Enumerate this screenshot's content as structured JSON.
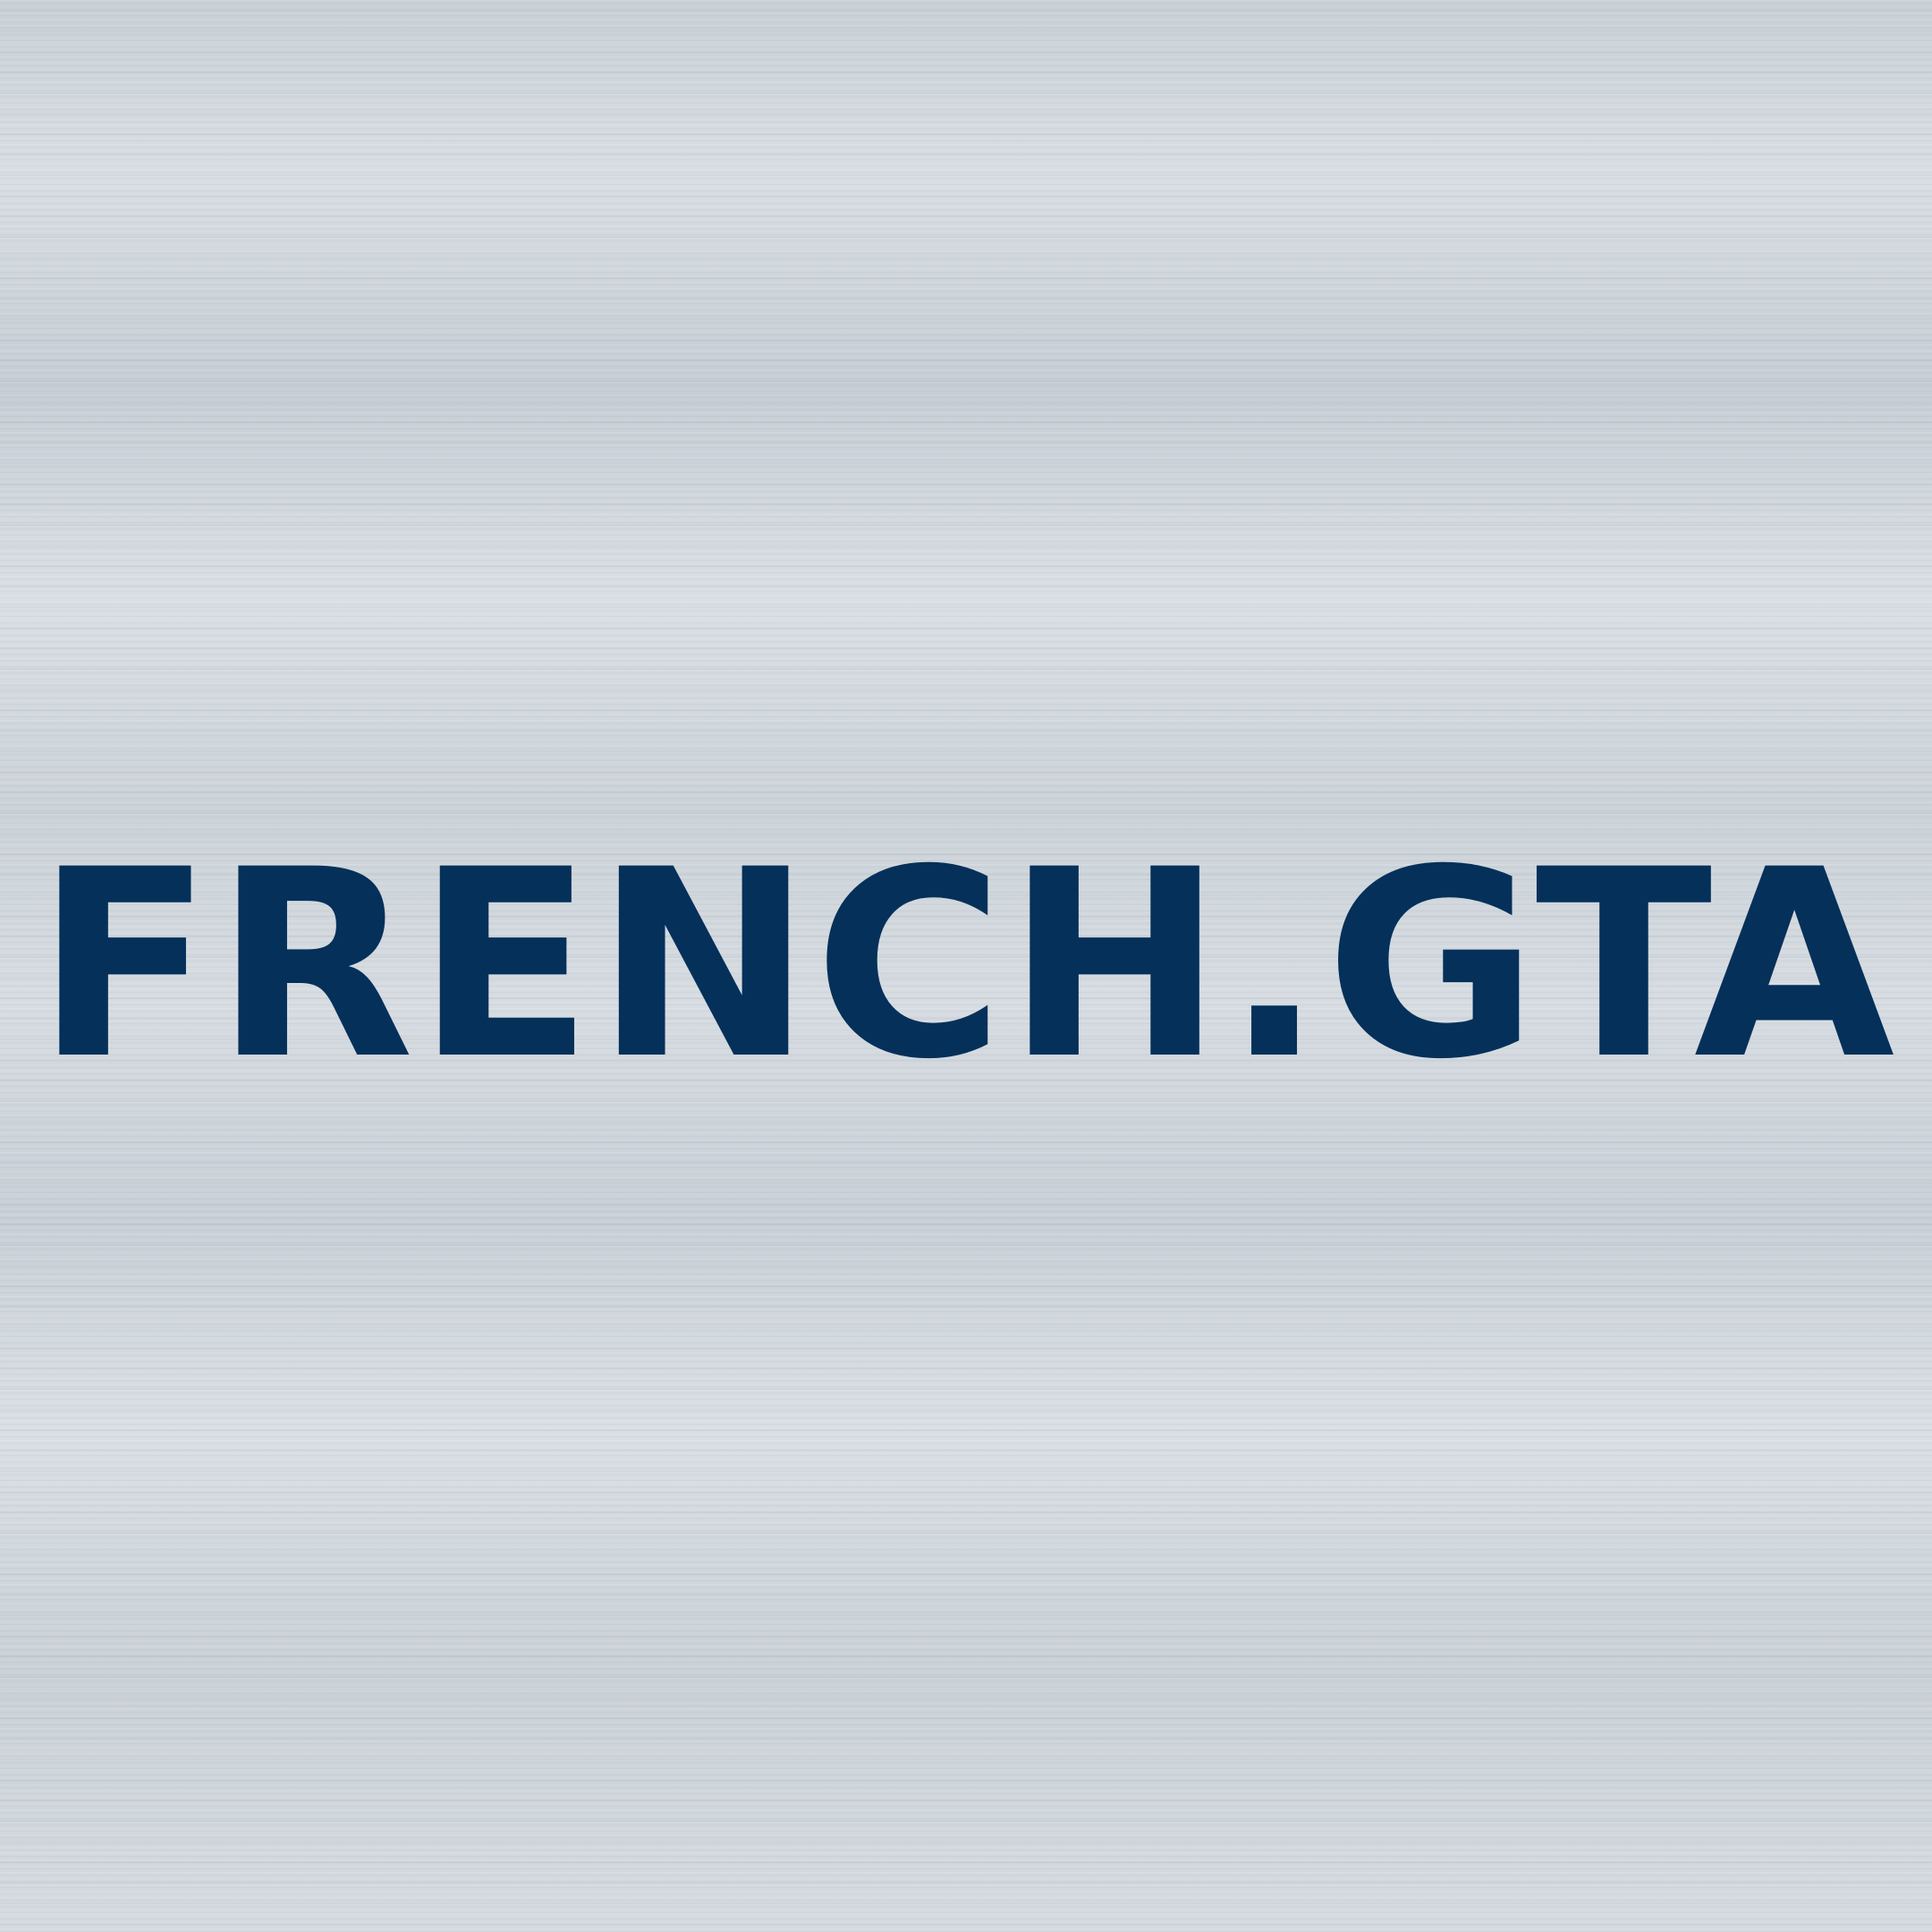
{
  "wordmark": {
    "text": "FRENCH.GTA",
    "color": "#04305a"
  },
  "background": {
    "style": "brushed aluminum",
    "color": "#cfd6dc"
  }
}
